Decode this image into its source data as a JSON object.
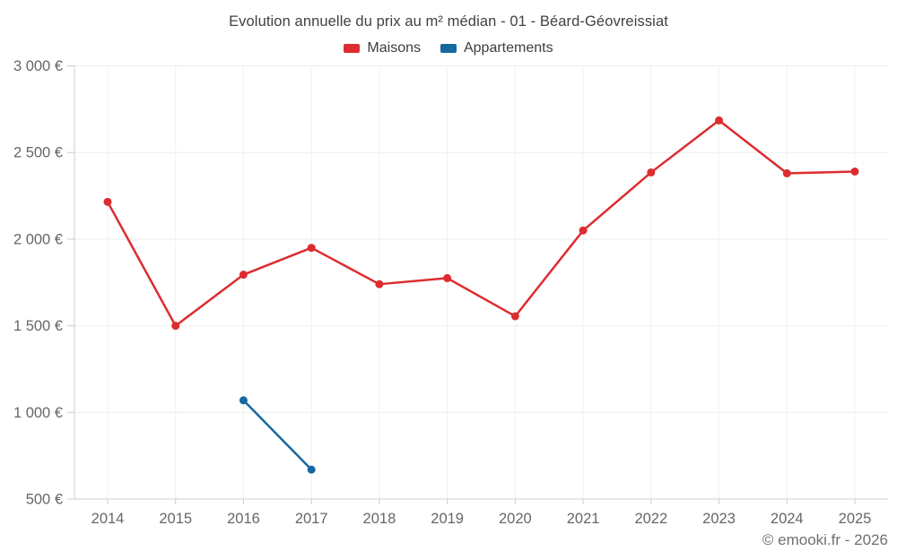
{
  "title": "Evolution annuelle du prix au m² médian - 01 - Béard-Géovreissiat",
  "footer": "© emooki.fr - 2026",
  "colors": {
    "maisons": "#dd2c30",
    "appartements": "#1668a1",
    "gridline": "#ededed",
    "axis_line": "#cccccc",
    "tick_text": "#666666",
    "title_text": "#414141"
  },
  "chart_data": {
    "type": "line",
    "title": "Evolution annuelle du prix au m² médian - 01 - Béard-Géovreissiat",
    "xlabel": "",
    "ylabel": "",
    "x_categories": [
      2014,
      2015,
      2016,
      2017,
      2018,
      2019,
      2020,
      2021,
      2022,
      2023,
      2024,
      2025
    ],
    "ylim": [
      500,
      3000
    ],
    "grid": true,
    "legend_position": "top",
    "y_ticks": [
      {
        "value": 500,
        "label": "500 €"
      },
      {
        "value": 1000,
        "label": "1 000 €"
      },
      {
        "value": 1500,
        "label": "1 500 €"
      },
      {
        "value": 2000,
        "label": "2 000 €"
      },
      {
        "value": 2500,
        "label": "2 500 €"
      },
      {
        "value": 3000,
        "label": "3 000 €"
      }
    ],
    "series": [
      {
        "name": "Maisons",
        "color": "#dd2c30",
        "points": [
          {
            "year": 2014,
            "value": 2215
          },
          {
            "year": 2015,
            "value": 1500
          },
          {
            "year": 2016,
            "value": 1795
          },
          {
            "year": 2017,
            "value": 1950
          },
          {
            "year": 2018,
            "value": 1740
          },
          {
            "year": 2019,
            "value": 1775
          },
          {
            "year": 2020,
            "value": 1555
          },
          {
            "year": 2021,
            "value": 2050
          },
          {
            "year": 2022,
            "value": 2385
          },
          {
            "year": 2023,
            "value": 2685
          },
          {
            "year": 2024,
            "value": 2380
          },
          {
            "year": 2025,
            "value": 2390
          }
        ]
      },
      {
        "name": "Appartements",
        "color": "#1668a1",
        "points": [
          {
            "year": 2016,
            "value": 1070
          },
          {
            "year": 2017,
            "value": 670
          }
        ]
      }
    ]
  }
}
